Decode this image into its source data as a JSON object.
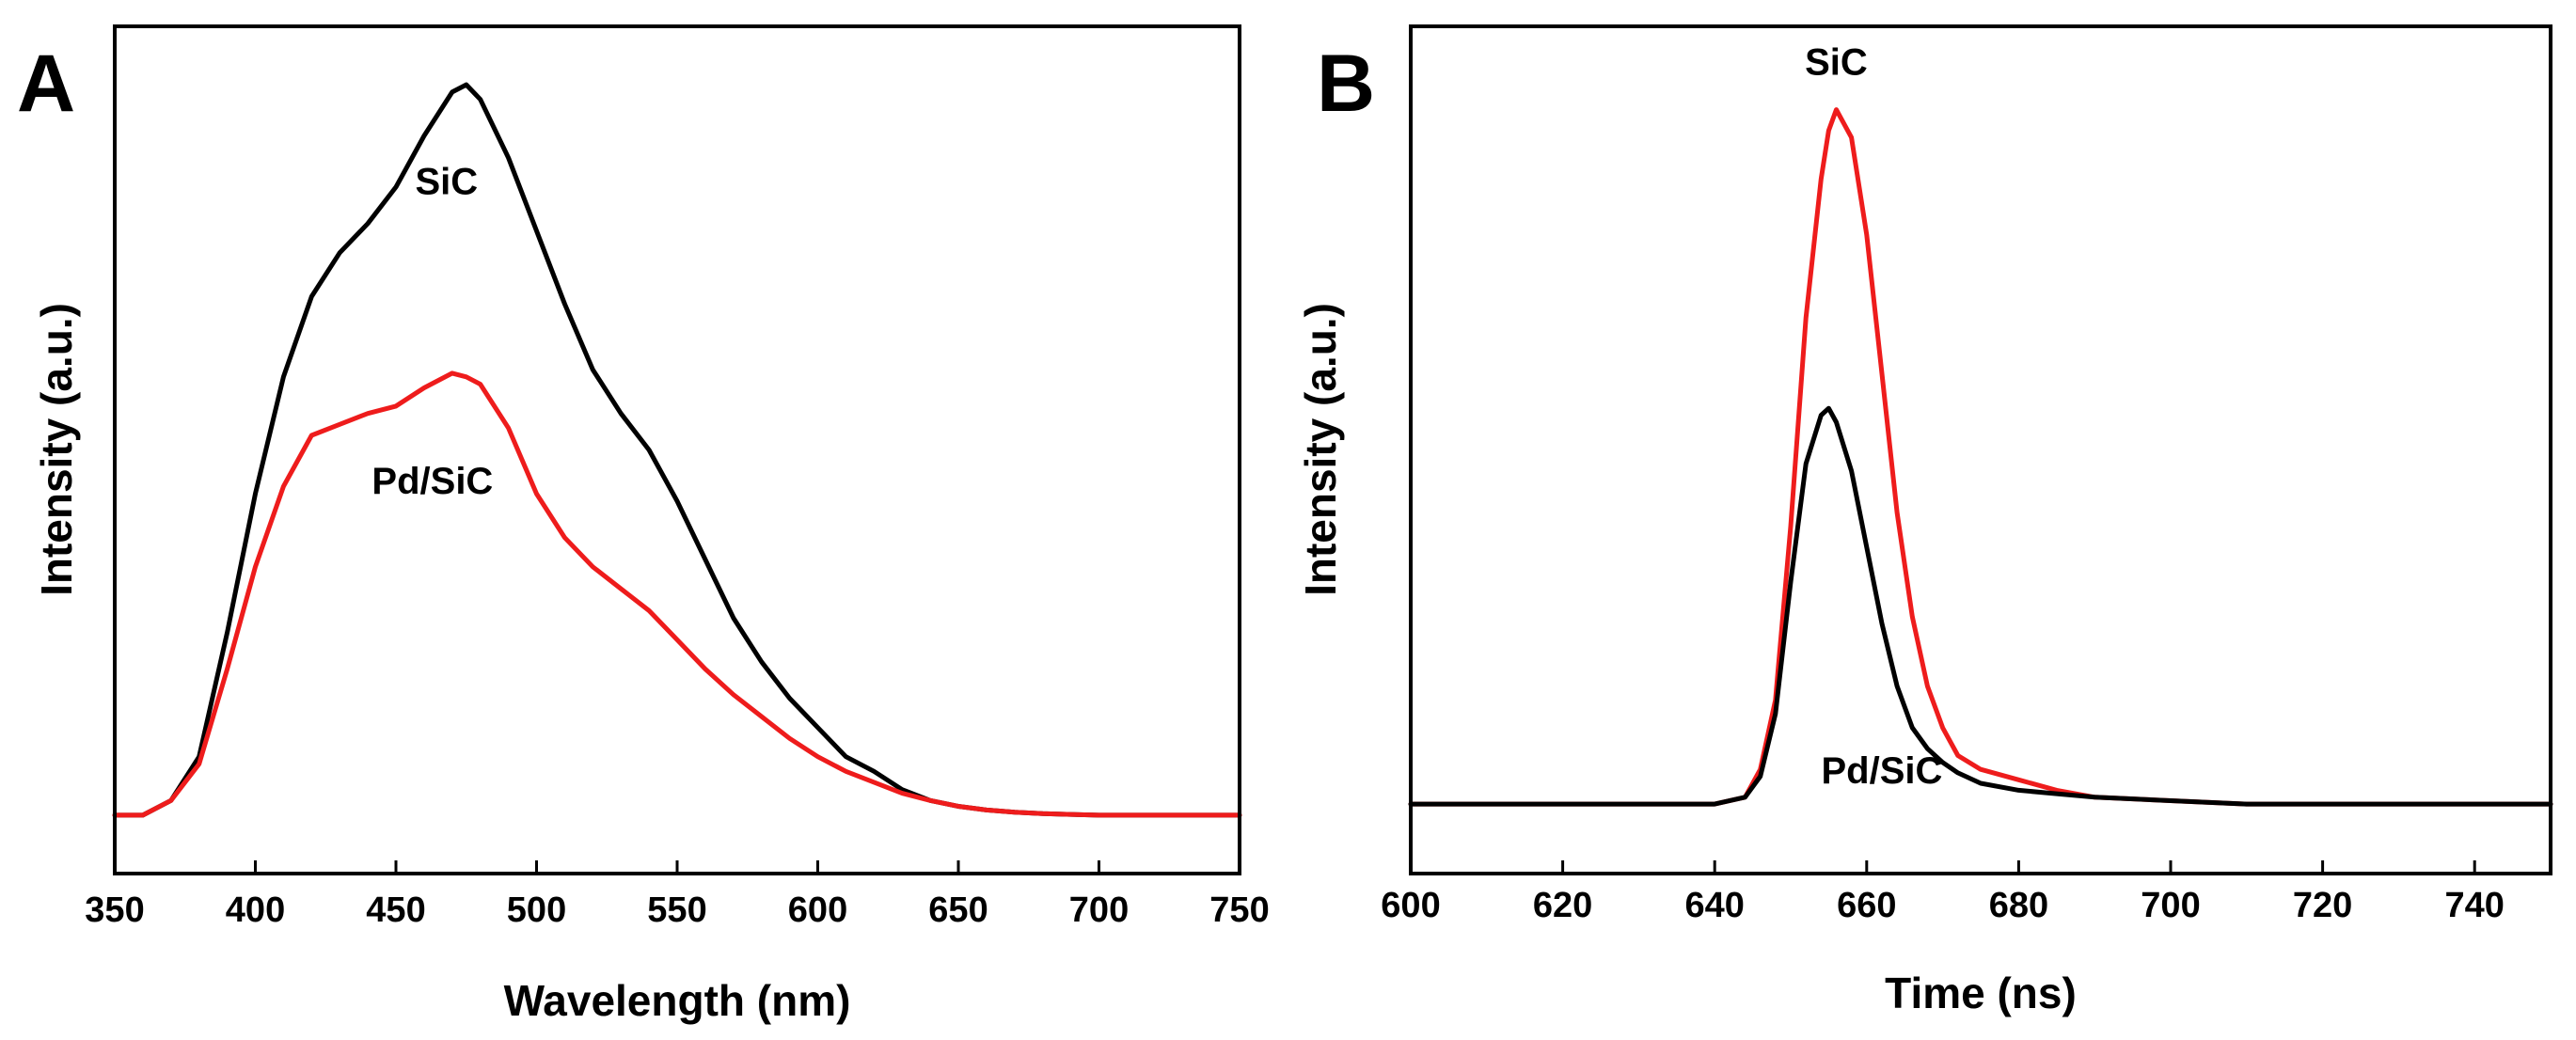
{
  "chart_data": [
    {
      "id": "A",
      "panel_label": "A",
      "type": "line",
      "title": "",
      "xlabel": "Wavelength (nm)",
      "ylabel": "Intensity (a.u.)",
      "xlim": [
        350,
        750
      ],
      "ylim": [
        -0.08,
        1.08
      ],
      "xticks": [
        350,
        400,
        450,
        500,
        550,
        600,
        650,
        700,
        750
      ],
      "y_tick_labels": false,
      "grid": false,
      "legend": "inline labels",
      "x": [
        350,
        360,
        370,
        380,
        390,
        400,
        410,
        420,
        430,
        440,
        450,
        460,
        470,
        475,
        480,
        490,
        500,
        510,
        520,
        530,
        540,
        550,
        560,
        570,
        580,
        590,
        600,
        610,
        620,
        630,
        640,
        650,
        660,
        670,
        680,
        690,
        700,
        720,
        750
      ],
      "series": [
        {
          "name": "SiC",
          "color": "#000000",
          "label": "SiC",
          "label_x": 468,
          "label_y": 0.85,
          "values": [
            0.0,
            0.0,
            0.02,
            0.08,
            0.25,
            0.44,
            0.6,
            0.71,
            0.77,
            0.81,
            0.86,
            0.93,
            0.99,
            1.0,
            0.98,
            0.9,
            0.8,
            0.7,
            0.61,
            0.55,
            0.5,
            0.43,
            0.35,
            0.27,
            0.21,
            0.16,
            0.12,
            0.08,
            0.06,
            0.035,
            0.02,
            0.012,
            0.007,
            0.004,
            0.002,
            0.001,
            0.0,
            0.0,
            0.0
          ]
        },
        {
          "name": "Pd/SiC",
          "color": "#ee1c1c",
          "label": "Pd/SiC",
          "label_x": 463,
          "label_y": 0.44,
          "values": [
            0.0,
            0.0,
            0.02,
            0.07,
            0.2,
            0.34,
            0.45,
            0.52,
            0.535,
            0.55,
            0.56,
            0.585,
            0.605,
            0.6,
            0.59,
            0.53,
            0.44,
            0.38,
            0.34,
            0.31,
            0.28,
            0.24,
            0.2,
            0.165,
            0.135,
            0.105,
            0.08,
            0.06,
            0.045,
            0.03,
            0.02,
            0.012,
            0.007,
            0.004,
            0.002,
            0.001,
            0.0,
            0.0,
            0.0
          ]
        }
      ]
    },
    {
      "id": "B",
      "panel_label": "B",
      "type": "line",
      "title": "",
      "xlabel": "Time (ns)",
      "ylabel": "Intensity (a.u.)",
      "xlim": [
        600,
        750
      ],
      "ylim": [
        -0.1,
        1.12
      ],
      "xticks": [
        600,
        620,
        640,
        660,
        680,
        700,
        720,
        740
      ],
      "y_tick_labels": false,
      "grid": false,
      "legend": "inline labels",
      "x": [
        600,
        620,
        640,
        644,
        646,
        648,
        650,
        652,
        654,
        655,
        656,
        658,
        660,
        662,
        664,
        666,
        668,
        670,
        672,
        675,
        680,
        685,
        690,
        700,
        710,
        720,
        730,
        740,
        750
      ],
      "series": [
        {
          "name": "SiC",
          "color": "#ee1c1c",
          "label": "SiC",
          "label_x": 656,
          "label_y": 1.05,
          "values": [
            0.0,
            0.0,
            0.0,
            0.01,
            0.05,
            0.15,
            0.4,
            0.7,
            0.9,
            0.97,
            1.0,
            0.96,
            0.82,
            0.62,
            0.42,
            0.27,
            0.17,
            0.11,
            0.07,
            0.05,
            0.035,
            0.02,
            0.01,
            0.005,
            0.0,
            0.0,
            0.0,
            0.0,
            0.0
          ]
        },
        {
          "name": "Pd/SiC",
          "color": "#000000",
          "label": "Pd/SiC",
          "label_x": 662,
          "label_y": 0.03,
          "values": [
            0.0,
            0.0,
            0.0,
            0.01,
            0.04,
            0.13,
            0.32,
            0.49,
            0.56,
            0.57,
            0.55,
            0.48,
            0.37,
            0.26,
            0.17,
            0.11,
            0.08,
            0.06,
            0.045,
            0.03,
            0.02,
            0.015,
            0.01,
            0.005,
            0.0,
            0.0,
            0.0,
            0.0,
            0.0
          ]
        }
      ]
    }
  ]
}
